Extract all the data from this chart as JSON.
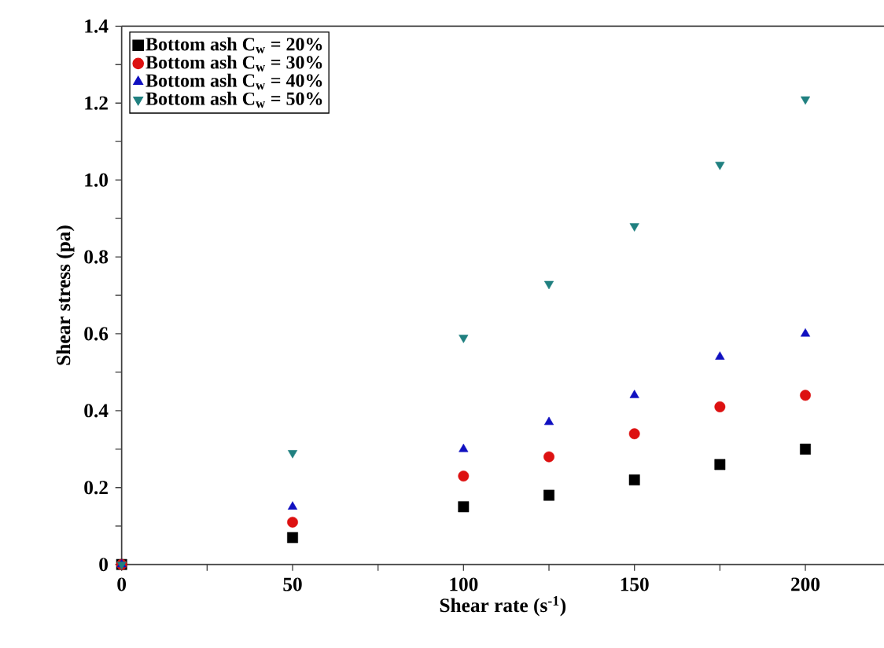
{
  "chart_data": {
    "type": "scatter",
    "xlabel": "Shear rate (s$^{-1}$)",
    "ylabel": "Shear stress (pa)",
    "x": [
      0,
      50,
      100,
      125,
      150,
      175,
      200
    ],
    "series": [
      {
        "name": "Bottom ash C$_{w}$ = 20%",
        "color": "#000000",
        "marker": "square",
        "values": [
          0,
          0.07,
          0.15,
          0.18,
          0.22,
          0.26,
          0.3
        ]
      },
      {
        "name": "Bottom ash C$_{w}$ = 30%",
        "color": "#dd1111",
        "marker": "circle",
        "values": [
          0,
          0.11,
          0.23,
          0.28,
          0.34,
          0.41,
          0.44
        ]
      },
      {
        "name": "Bottom ash C$_{w}$ = 40%",
        "color": "#1010c0",
        "marker": "triangle",
        "values": [
          0,
          0.15,
          0.3,
          0.37,
          0.44,
          0.54,
          0.6
        ]
      },
      {
        "name": "Bottom ash C$_{w}$ = 50%",
        "color": "#208080",
        "marker": "triangle-down",
        "values": [
          0,
          0.29,
          0.59,
          0.73,
          0.88,
          1.04,
          1.21
        ]
      }
    ],
    "xlim": [
      0,
      223
    ],
    "ylim": [
      0,
      1.4
    ],
    "xticks": [
      0,
      {
        "value": 25,
        "label": null
      },
      50,
      {
        "value": 75,
        "label": null
      },
      100,
      {
        "value": 125,
        "label": null
      },
      150,
      {
        "value": 175,
        "label": null
      },
      200
    ],
    "yticks": [
      0,
      {
        "value": 0.1,
        "label": null
      },
      0.2,
      {
        "value": 0.3,
        "label": null
      },
      0.4,
      {
        "value": 0.5,
        "label": null
      },
      0.6,
      {
        "value": 0.7,
        "label": null
      },
      0.8,
      {
        "value": 0.9,
        "label": null
      },
      {
        "value": 1.0,
        "label": "1.0"
      },
      {
        "value": 1.1,
        "label": null
      },
      1.2,
      {
        "value": 1.3,
        "label": null
      },
      1.4
    ],
    "grid": false,
    "legend": "top left"
  }
}
